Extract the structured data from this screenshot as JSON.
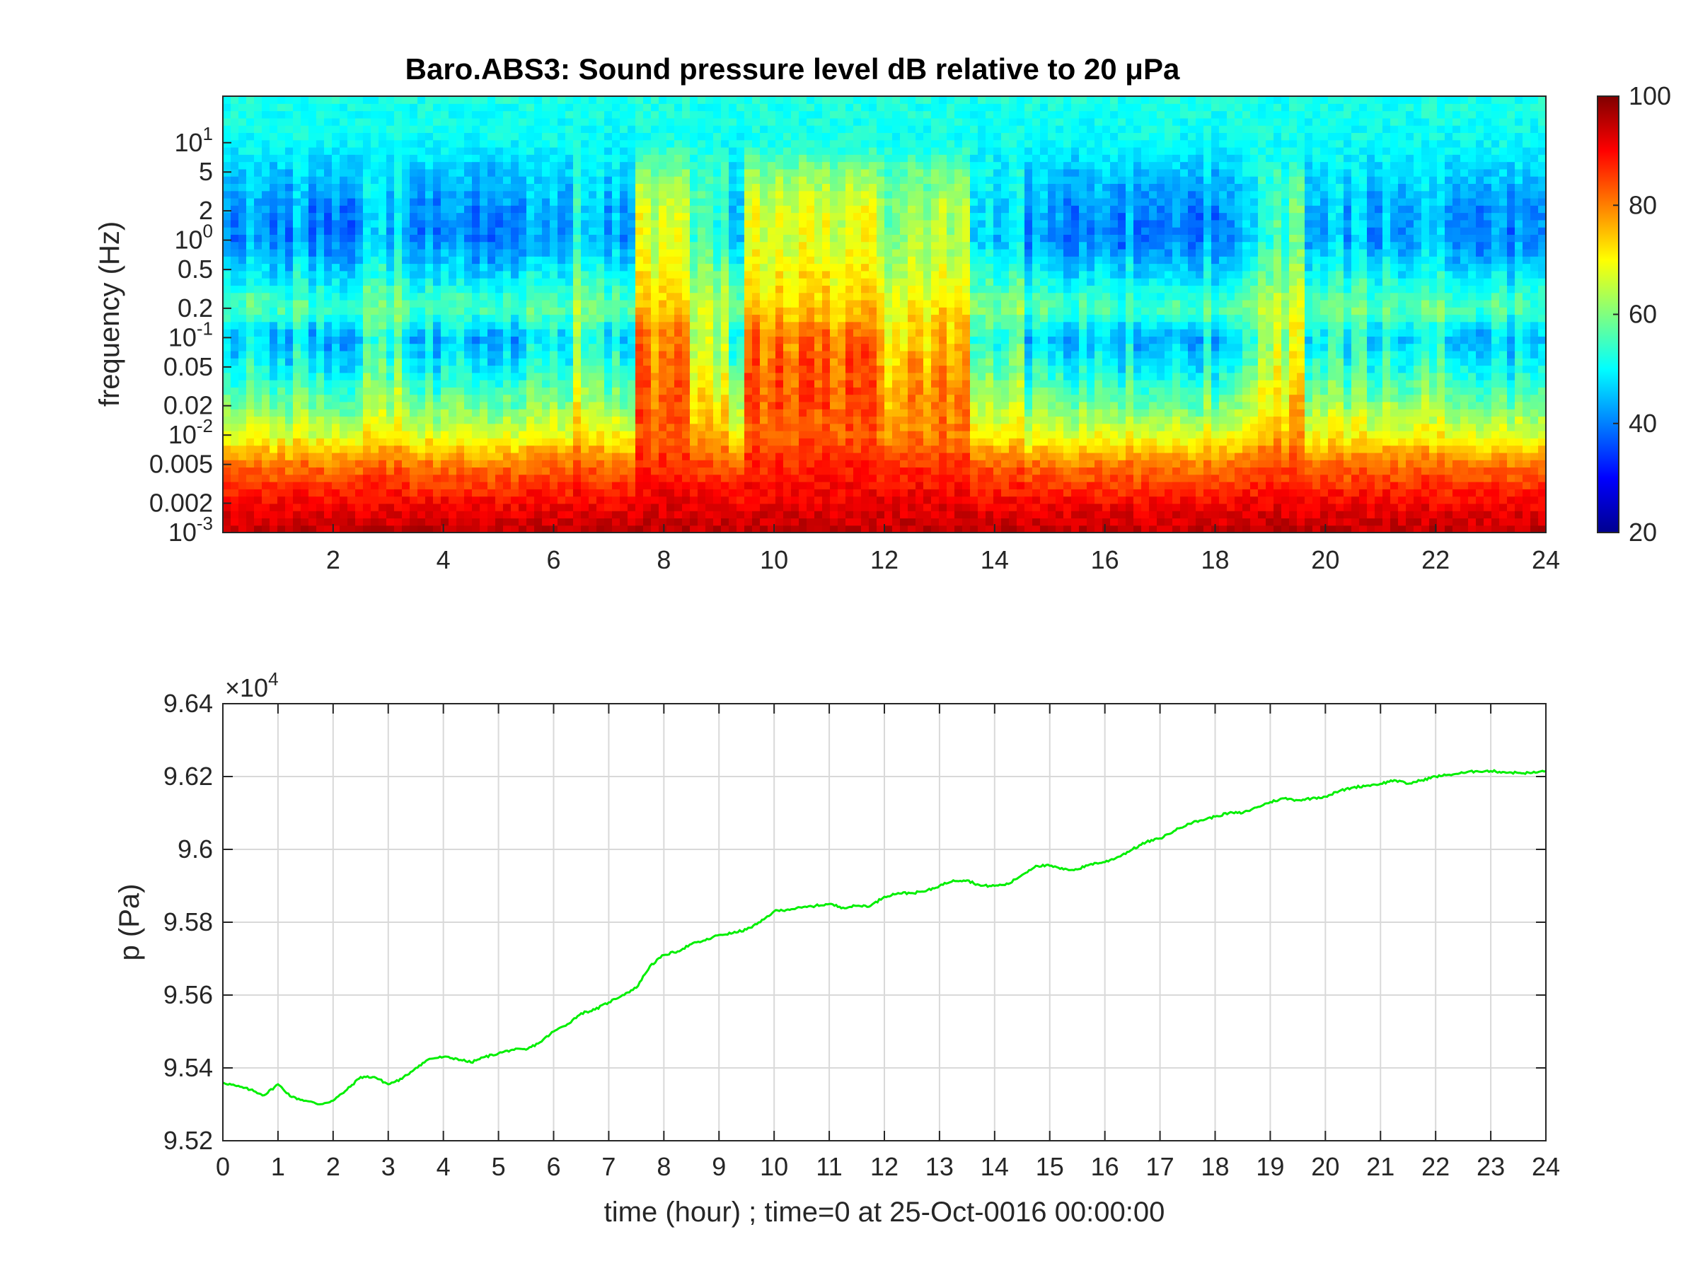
{
  "chart_data": [
    {
      "type": "heatmap",
      "title": "Baro.ABS3: Sound pressure level dB relative to 20 μPa",
      "xlabel": "",
      "ylabel": "frequency (Hz)",
      "xlim": [
        0,
        24
      ],
      "ylim": [
        0.001,
        30
      ],
      "yscale": "log",
      "x_ticks": [
        {
          "value": 2,
          "label": "2"
        },
        {
          "value": 4,
          "label": "4"
        },
        {
          "value": 6,
          "label": "6"
        },
        {
          "value": 8,
          "label": "8"
        },
        {
          "value": 10,
          "label": "10"
        },
        {
          "value": 12,
          "label": "12"
        },
        {
          "value": 14,
          "label": "14"
        },
        {
          "value": 16,
          "label": "16"
        },
        {
          "value": 18,
          "label": "18"
        },
        {
          "value": 20,
          "label": "20"
        },
        {
          "value": 22,
          "label": "22"
        },
        {
          "value": 24,
          "label": "24"
        }
      ],
      "y_ticks": [
        {
          "value": 10,
          "base": "10",
          "exp": "1"
        },
        {
          "value": 5,
          "base": "5",
          "exp": ""
        },
        {
          "value": 2,
          "base": "2",
          "exp": ""
        },
        {
          "value": 1,
          "base": "10",
          "exp": "0"
        },
        {
          "value": 0.5,
          "base": "0.5",
          "exp": ""
        },
        {
          "value": 0.2,
          "base": "0.2",
          "exp": ""
        },
        {
          "value": 0.1,
          "base": "10",
          "exp": "-1"
        },
        {
          "value": 0.05,
          "base": "0.05",
          "exp": ""
        },
        {
          "value": 0.02,
          "base": "0.02",
          "exp": ""
        },
        {
          "value": 0.01,
          "base": "10",
          "exp": "-2"
        },
        {
          "value": 0.005,
          "base": "0.005",
          "exp": ""
        },
        {
          "value": 0.002,
          "base": "0.002",
          "exp": ""
        },
        {
          "value": 0.001,
          "base": "10",
          "exp": "-3"
        }
      ],
      "colorbar": {
        "colormap": "jet",
        "range": [
          20,
          100
        ],
        "ticks": [
          {
            "value": 20,
            "label": "20"
          },
          {
            "value": 40,
            "label": "40"
          },
          {
            "value": 60,
            "label": "60"
          },
          {
            "value": 80,
            "label": "80"
          },
          {
            "value": 100,
            "label": "100"
          }
        ]
      },
      "level_profiles": {
        "freq_hz": [
          30,
          10,
          5,
          2,
          1,
          0.5,
          0.2,
          0.1,
          0.05,
          0.02,
          0.01,
          0.005,
          0.002,
          0.001
        ],
        "quiet_db": [
          52,
          50,
          44,
          38,
          37,
          44,
          54,
          40,
          46,
          56,
          66,
          80,
          90,
          95
        ],
        "active_db": [
          52,
          52,
          62,
          70,
          70,
          72,
          76,
          84,
          86,
          86,
          84,
          88,
          92,
          95
        ]
      },
      "activity": [
        {
          "from": 0,
          "to": 0.2,
          "level": 0.1
        },
        {
          "from": 0.2,
          "to": 1.5,
          "level": 0.15
        },
        {
          "from": 1.5,
          "to": 2.5,
          "level": 0.05
        },
        {
          "from": 2.5,
          "to": 3.3,
          "level": 0.25
        },
        {
          "from": 3.3,
          "to": 4.0,
          "level": 0.1
        },
        {
          "from": 4.0,
          "to": 6.4,
          "level": 0.1
        },
        {
          "from": 6.4,
          "to": 6.9,
          "level": 0.4
        },
        {
          "from": 6.9,
          "to": 7.5,
          "level": 0.15
        },
        {
          "from": 7.5,
          "to": 8.5,
          "level": 0.9
        },
        {
          "from": 8.5,
          "to": 9.2,
          "level": 0.55
        },
        {
          "from": 9.2,
          "to": 9.5,
          "level": 0.35
        },
        {
          "from": 9.5,
          "to": 12.0,
          "level": 0.95
        },
        {
          "from": 12.0,
          "to": 13.5,
          "level": 0.75
        },
        {
          "from": 13.5,
          "to": 14.5,
          "level": 0.3
        },
        {
          "from": 14.5,
          "to": 18.3,
          "level": 0.1
        },
        {
          "from": 18.3,
          "to": 18.8,
          "level": 0.3
        },
        {
          "from": 18.8,
          "to": 19.6,
          "level": 0.55
        },
        {
          "from": 19.6,
          "to": 22.5,
          "level": 0.2
        },
        {
          "from": 22.5,
          "to": 23.9,
          "level": 0.1
        },
        {
          "from": 23.9,
          "to": 24.0,
          "level": 0.0
        }
      ]
    },
    {
      "type": "line",
      "title": "",
      "xlabel": "time (hour) ; time=0 at 25-Oct-0016 00:00:00",
      "ylabel": "p (Pa)",
      "xlim": [
        0,
        24
      ],
      "ylim": [
        95200,
        96400
      ],
      "y_multiplier": {
        "base": "×10",
        "exp": "4"
      },
      "grid": true,
      "x_ticks": [
        "0",
        "1",
        "2",
        "3",
        "4",
        "5",
        "6",
        "7",
        "8",
        "9",
        "10",
        "11",
        "12",
        "13",
        "14",
        "15",
        "16",
        "17",
        "18",
        "19",
        "20",
        "21",
        "22",
        "23",
        "24"
      ],
      "y_ticks": [
        {
          "value": 95200,
          "label": "9.52"
        },
        {
          "value": 95400,
          "label": "9.54"
        },
        {
          "value": 95600,
          "label": "9.56"
        },
        {
          "value": 95800,
          "label": "9.58"
        },
        {
          "value": 96000,
          "label": "9.6"
        },
        {
          "value": 96200,
          "label": "9.62"
        },
        {
          "value": 96400,
          "label": "9.64"
        }
      ],
      "series": [
        {
          "color": "#00ee00",
          "x": [
            0,
            0.25,
            0.5,
            0.75,
            1,
            1.25,
            1.5,
            1.75,
            2,
            2.25,
            2.5,
            2.75,
            3,
            3.25,
            3.5,
            3.75,
            4,
            4.25,
            4.5,
            4.75,
            5,
            5.25,
            5.5,
            5.75,
            6,
            6.25,
            6.5,
            6.75,
            7,
            7.25,
            7.5,
            7.75,
            8,
            8.25,
            8.5,
            8.75,
            9,
            9.25,
            9.5,
            9.75,
            10,
            10.25,
            10.5,
            10.75,
            11,
            11.25,
            11.5,
            11.75,
            12,
            12.25,
            12.5,
            12.75,
            13,
            13.25,
            13.5,
            13.75,
            14,
            14.25,
            14.5,
            14.75,
            15,
            15.25,
            15.5,
            15.75,
            16,
            16.25,
            16.5,
            16.75,
            17,
            17.25,
            17.5,
            17.75,
            18,
            18.25,
            18.5,
            18.75,
            19,
            19.25,
            19.5,
            19.75,
            20,
            20.25,
            20.5,
            20.75,
            21,
            21.25,
            21.5,
            21.75,
            22,
            22.25,
            22.5,
            22.75,
            23,
            23.25,
            23.5,
            23.75,
            24
          ],
          "y": [
            95360,
            95350,
            95340,
            95325,
            95355,
            95320,
            95310,
            95300,
            95310,
            95340,
            95375,
            95375,
            95355,
            95370,
            95400,
            95425,
            95430,
            95425,
            95415,
            95430,
            95440,
            95450,
            95450,
            95470,
            95500,
            95520,
            95550,
            95560,
            95580,
            95600,
            95620,
            95680,
            95710,
            95720,
            95740,
            95750,
            95765,
            95770,
            95780,
            95800,
            95830,
            95835,
            95840,
            95845,
            95850,
            95840,
            95845,
            95845,
            95870,
            95880,
            95880,
            95885,
            95900,
            95915,
            95915,
            95900,
            95900,
            95905,
            95930,
            95955,
            95955,
            95945,
            95945,
            95960,
            95965,
            95980,
            96000,
            96020,
            96030,
            96050,
            96070,
            96080,
            96090,
            96100,
            96100,
            96115,
            96130,
            96140,
            96135,
            96140,
            96145,
            96160,
            96170,
            96175,
            96180,
            96190,
            96180,
            96190,
            96200,
            96205,
            96210,
            96215,
            96215,
            96212,
            96210,
            96210,
            96215
          ]
        }
      ]
    }
  ]
}
